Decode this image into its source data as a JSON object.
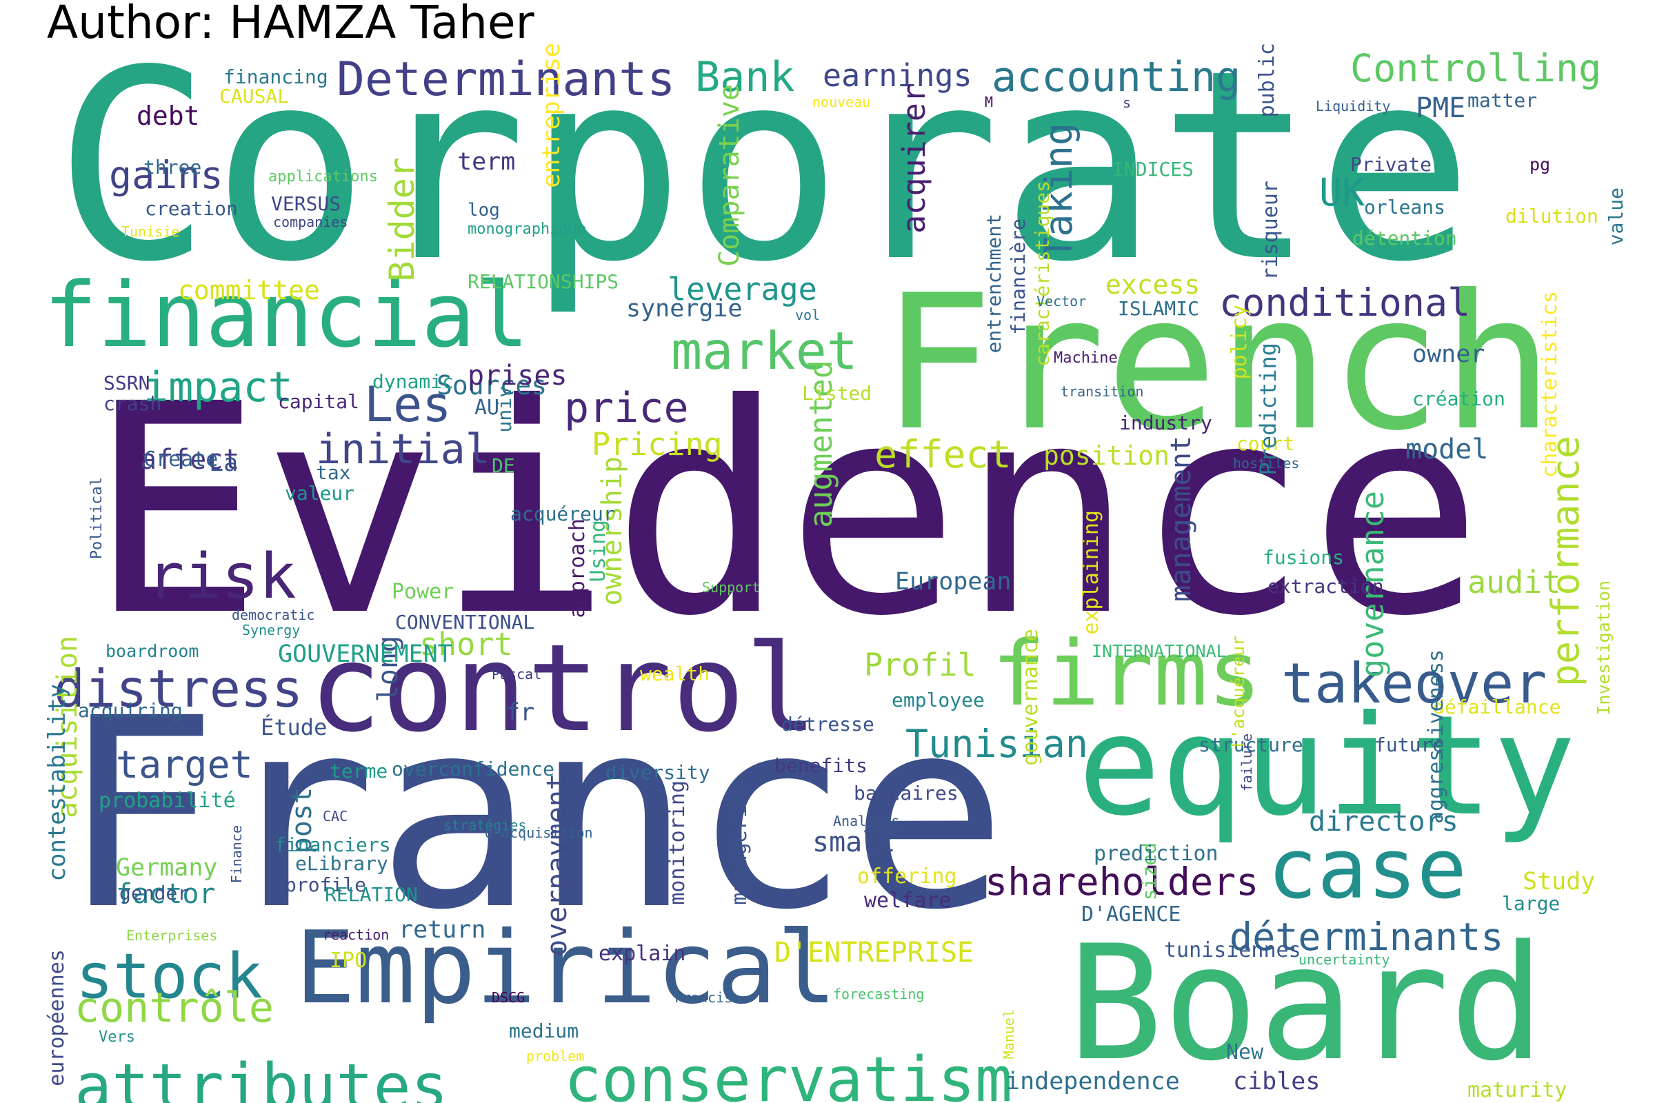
{
  "title": "Author: HAMZA Taher",
  "cloud": {
    "palette": "viridis",
    "words": [
      {
        "t": "Corporate",
        "c": "#26a584"
      },
      {
        "t": "Evidence",
        "c": "#46186c"
      },
      {
        "t": "France",
        "c": "#3c4f8a"
      },
      {
        "t": "French",
        "c": "#5ec962"
      },
      {
        "t": "Board",
        "c": "#3ab676"
      },
      {
        "t": "equity",
        "c": "#2ab07f"
      },
      {
        "t": "control",
        "c": "#472d7b"
      },
      {
        "t": "financial",
        "c": "#29af7f"
      },
      {
        "t": "Empirical",
        "c": "#3b5d8b"
      },
      {
        "t": "firms",
        "c": "#6ccd5a"
      },
      {
        "t": "case",
        "c": "#21908c"
      },
      {
        "t": "takeover",
        "c": "#375b8d"
      },
      {
        "t": "conservatism",
        "c": "#2fb47c"
      },
      {
        "t": "attributes",
        "c": "#27a882"
      },
      {
        "t": "stock",
        "c": "#24868e"
      },
      {
        "t": "risk",
        "c": "#482576"
      },
      {
        "t": "market",
        "c": "#54c568"
      },
      {
        "t": "Determinants",
        "c": "#424086"
      },
      {
        "t": "accounting",
        "c": "#2a788e"
      },
      {
        "t": "Controlling",
        "c": "#5cc863"
      },
      {
        "t": "Bank",
        "c": "#23a983"
      },
      {
        "t": "earnings",
        "c": "#3f4889"
      },
      {
        "t": "distress",
        "c": "#414487"
      },
      {
        "t": "acquisition",
        "c": "#aadc32"
      },
      {
        "t": "contrôle",
        "c": "#8fd744"
      },
      {
        "t": "price",
        "c": "#482878"
      },
      {
        "t": "Les",
        "c": "#3b528b"
      },
      {
        "t": "initial",
        "c": "#404688"
      },
      {
        "t": "impact",
        "c": "#20a486"
      },
      {
        "t": "effect",
        "c": "#bddf26"
      },
      {
        "t": "shareholders",
        "c": "#440f59"
      },
      {
        "t": "déterminants",
        "c": "#32648e"
      },
      {
        "t": "conditional",
        "c": "#45347e"
      },
      {
        "t": "Tunisian",
        "c": "#228b8d"
      },
      {
        "t": "gains",
        "c": "#414387"
      },
      {
        "t": "Bidder",
        "c": "#a2da37"
      },
      {
        "t": "performance",
        "c": "#b0dd2f"
      },
      {
        "t": "Taking",
        "c": "#2c718e"
      },
      {
        "t": "target",
        "c": "#3a548c"
      },
      {
        "t": "UK",
        "c": "#1f988b"
      },
      {
        "t": "leverage",
        "c": "#1f958b"
      },
      {
        "t": "committee",
        "c": "#d8e219"
      },
      {
        "t": "affect",
        "c": "#443a83"
      },
      {
        "t": "Pricing",
        "c": "#c8e020"
      },
      {
        "t": "audit",
        "c": "#9bd93c"
      },
      {
        "t": "governance",
        "c": "#3aba76"
      },
      {
        "t": "management",
        "c": "#3e4c8a"
      },
      {
        "t": "acquirer",
        "c": "#481f70"
      },
      {
        "t": "Comparative",
        "c": "#7ad151"
      },
      {
        "t": "entreprise",
        "c": "#fde725"
      },
      {
        "t": "short",
        "c": "#95d840"
      },
      {
        "t": "augmented",
        "c": "#6ece58"
      },
      {
        "t": "ownership",
        "c": "#a5db36"
      },
      {
        "t": "European",
        "c": "#31688e"
      },
      {
        "t": "model",
        "c": "#31678e"
      },
      {
        "t": "position",
        "c": "#bbdf27"
      },
      {
        "t": "excess",
        "c": "#c0df25"
      },
      {
        "t": "Profil",
        "c": "#9dd93b"
      },
      {
        "t": "long",
        "c": "#3a538b"
      },
      {
        "t": "small",
        "c": "#3c508b"
      },
      {
        "t": "factor",
        "c": "#238a8d"
      },
      {
        "t": "directors",
        "c": "#29798e"
      },
      {
        "t": "PME",
        "c": "#35608d"
      },
      {
        "t": "owner",
        "c": "#34618d"
      },
      {
        "t": "D'ENTREPRISE",
        "c": "#d5e21a"
      },
      {
        "t": "GOUVERNEMENT",
        "c": "#1fa088"
      },
      {
        "t": "return",
        "c": "#30698e"
      },
      {
        "t": "Sources",
        "c": "#2c728e"
      },
      {
        "t": "prises",
        "c": "#482475"
      },
      {
        "t": "La",
        "c": "#3a548c"
      },
      {
        "t": "term",
        "c": "#453581"
      },
      {
        "t": "debt",
        "c": "#460b5e"
      },
      {
        "t": "Germany",
        "c": "#75d054"
      },
      {
        "t": "post",
        "c": "#2d718e"
      },
      {
        "t": "overpayment",
        "c": "#3e4a89"
      },
      {
        "t": "independence",
        "c": "#2d708e"
      },
      {
        "t": "synergie",
        "c": "#33628d"
      },
      {
        "t": "Study",
        "c": "#cde11d"
      },
      {
        "t": "contestability",
        "c": "#2a778e"
      },
      {
        "t": "monitoring",
        "c": "#3f4788"
      },
      {
        "t": "managerial",
        "c": "#3b528b"
      },
      {
        "t": "explaining",
        "c": "#e5e419"
      },
      {
        "t": "gouvernance",
        "c": "#b8de29"
      },
      {
        "t": "probabilité",
        "c": "#20a386"
      },
      {
        "t": "IPO",
        "c": "#d0e11c"
      },
      {
        "t": "cibles",
        "c": "#433e85"
      },
      {
        "t": "maturity",
        "c": "#b5de2b"
      },
      {
        "t": "européennes",
        "c": "#3f4a8a"
      },
      {
        "t": "Étude",
        "c": "#3a548c"
      },
      {
        "t": "employee",
        "c": "#25848e"
      },
      {
        "t": "fr",
        "c": "#3a538b"
      },
      {
        "t": "overconfidence",
        "c": "#2d718e"
      },
      {
        "t": "diversity",
        "c": "#2e6e8e"
      },
      {
        "t": "benefits",
        "c": "#453781"
      },
      {
        "t": "détresse",
        "c": "#39558c"
      },
      {
        "t": "bancaires",
        "c": "#3e4a89"
      },
      {
        "t": "future",
        "c": "#38598c"
      },
      {
        "t": "structure",
        "c": "#2e6e8e"
      },
      {
        "t": "défaillance",
        "c": "#e0e318"
      },
      {
        "t": "acquiring",
        "c": "#31668e"
      },
      {
        "t": "terme",
        "c": "#1e9c89"
      },
      {
        "t": "financiers",
        "c": "#238a8d"
      },
      {
        "t": "eLibrary",
        "c": "#2c728e"
      },
      {
        "t": "sized",
        "c": "#5dc863"
      },
      {
        "t": "profile",
        "c": "#3c4f8a"
      },
      {
        "t": "RELATION",
        "c": "#21918c"
      },
      {
        "t": "gender",
        "c": "#3c508b"
      },
      {
        "t": "offering",
        "c": "#e2e418"
      },
      {
        "t": "welfare",
        "c": "#472c7a"
      },
      {
        "t": "prediction",
        "c": "#2d718e"
      },
      {
        "t": "D'AGENCE",
        "c": "#31668e"
      },
      {
        "t": "large",
        "c": "#228c8d"
      },
      {
        "t": "tunisiennes",
        "c": "#38588c"
      },
      {
        "t": "explain",
        "c": "#46317e"
      },
      {
        "t": "New",
        "c": "#2c738e"
      },
      {
        "t": "medium",
        "c": "#2c728e"
      },
      {
        "t": "capital",
        "c": "#482878"
      },
      {
        "t": "dynamic",
        "c": "#1fa287"
      },
      {
        "t": "univ",
        "c": "#2b758e"
      },
      {
        "t": "AU",
        "c": "#33638d"
      },
      {
        "t": "SSRN",
        "c": "#453882"
      },
      {
        "t": "crash",
        "c": "#414287"
      },
      {
        "t": "Create",
        "c": "#35608d"
      },
      {
        "t": "tax",
        "c": "#31688e"
      },
      {
        "t": "valeur",
        "c": "#1f978b"
      },
      {
        "t": "DE",
        "c": "#4ec36b"
      },
      {
        "t": "acquéreur",
        "c": "#2e6f8e"
      },
      {
        "t": "Power",
        "c": "#6ece58"
      },
      {
        "t": "CONVENTIONAL",
        "c": "#3c4f8a"
      },
      {
        "t": "boardroom",
        "c": "#26828e"
      },
      {
        "t": "wealth",
        "c": "#f1e51d"
      },
      {
        "t": "Listed",
        "c": "#b5de2b"
      },
      {
        "t": "industry",
        "c": "#482374"
      },
      {
        "t": "court",
        "c": "#dae319"
      },
      {
        "t": "fusions",
        "c": "#29af7f"
      },
      {
        "t": "extraction",
        "c": "#46337f"
      },
      {
        "t": "ISLAMIC",
        "c": "#2e6e8e"
      },
      {
        "t": "INDICES",
        "c": "#35b779"
      },
      {
        "t": "Private",
        "c": "#3e4989"
      },
      {
        "t": "orleans",
        "c": "#2a768e"
      },
      {
        "t": "détention",
        "c": "#5ac864"
      },
      {
        "t": "dilution",
        "c": "#d8e219"
      },
      {
        "t": "matter",
        "c": "#33638d"
      },
      {
        "t": "création",
        "c": "#26ad81"
      },
      {
        "t": "creation",
        "c": "#38588c"
      },
      {
        "t": "three",
        "c": "#31688e"
      },
      {
        "t": "VERSUS",
        "c": "#3f4788"
      },
      {
        "t": "financing",
        "c": "#2a788e"
      },
      {
        "t": "CAUSAL",
        "c": "#dae319"
      },
      {
        "t": "log",
        "c": "#34618d"
      },
      {
        "t": "RELATIONSHIPS",
        "c": "#5cc863"
      },
      {
        "t": "INTERNATIONAL",
        "c": "#3bbb75"
      },
      {
        "t": "Investigation",
        "c": "#b2dd2d"
      },
      {
        "t": "public",
        "c": "#3b528b"
      },
      {
        "t": "risqueur",
        "c": "#39568c"
      },
      {
        "t": "policy",
        "c": "#d2e21b"
      },
      {
        "t": "Predicting",
        "c": "#287c8e"
      },
      {
        "t": "characteristics",
        "c": "#fde725"
      },
      {
        "t": "aggressiveness",
        "c": "#2d708e"
      },
      {
        "t": "value",
        "c": "#2a778e"
      },
      {
        "t": "financière",
        "c": "#3b528b"
      },
      {
        "t": "caractéristiques",
        "c": "#b8de29"
      },
      {
        "t": "entrenchment",
        "c": "#33638d"
      },
      {
        "t": "l'acquéreur",
        "c": "#c2df23"
      },
      {
        "t": "approach",
        "c": "#481a6c"
      },
      {
        "t": "Using",
        "c": "#35b779"
      },
      {
        "t": "applications",
        "c": "#5ec962"
      },
      {
        "t": "companies",
        "c": "#3f4788"
      },
      {
        "t": "Tunisie",
        "c": "#e7e419"
      },
      {
        "t": "monographique",
        "c": "#1f9e89"
      },
      {
        "t": "nouveau",
        "c": "#f4e61e"
      },
      {
        "t": "M",
        "c": "#440154"
      },
      {
        "t": "s",
        "c": "#433d84"
      },
      {
        "t": "Liquidity",
        "c": "#355f8d"
      },
      {
        "t": "pg",
        "c": "#46085c"
      },
      {
        "t": "vol",
        "c": "#2c738e"
      },
      {
        "t": "Vector",
        "c": "#2d708e"
      },
      {
        "t": "Machine",
        "c": "#481f70"
      },
      {
        "t": "transition",
        "c": "#33638d"
      },
      {
        "t": "hostiles",
        "c": "#31678e"
      },
      {
        "t": "Political",
        "c": "#38588c"
      },
      {
        "t": "democratic",
        "c": "#3a538b"
      },
      {
        "t": "Synergy",
        "c": "#228c8d"
      },
      {
        "t": "Pascal",
        "c": "#453882"
      },
      {
        "t": "Support",
        "c": "#5ec962"
      },
      {
        "t": "CAC",
        "c": "#3e4989"
      },
      {
        "t": "stratégies",
        "c": "#26828e"
      },
      {
        "t": "d'acquisition",
        "c": "#33638d"
      },
      {
        "t": "Analysts",
        "c": "#39568c"
      },
      {
        "t": "Finance",
        "c": "#3b528b"
      },
      {
        "t": "Enterprises",
        "c": "#8bd646"
      },
      {
        "t": "reaction",
        "c": "#481a6c"
      },
      {
        "t": "Vers",
        "c": "#21918c"
      },
      {
        "t": "DSCG",
        "c": "#440154"
      },
      {
        "t": "Francis",
        "c": "#34618d"
      },
      {
        "t": "problem",
        "c": "#f1e51d"
      },
      {
        "t": "forecasting",
        "c": "#4ac16d"
      },
      {
        "t": "Manuel",
        "c": "#d2e21b"
      },
      {
        "t": "failure",
        "c": "#3f4788"
      },
      {
        "t": "uncertainty",
        "c": "#35b779"
      }
    ]
  }
}
